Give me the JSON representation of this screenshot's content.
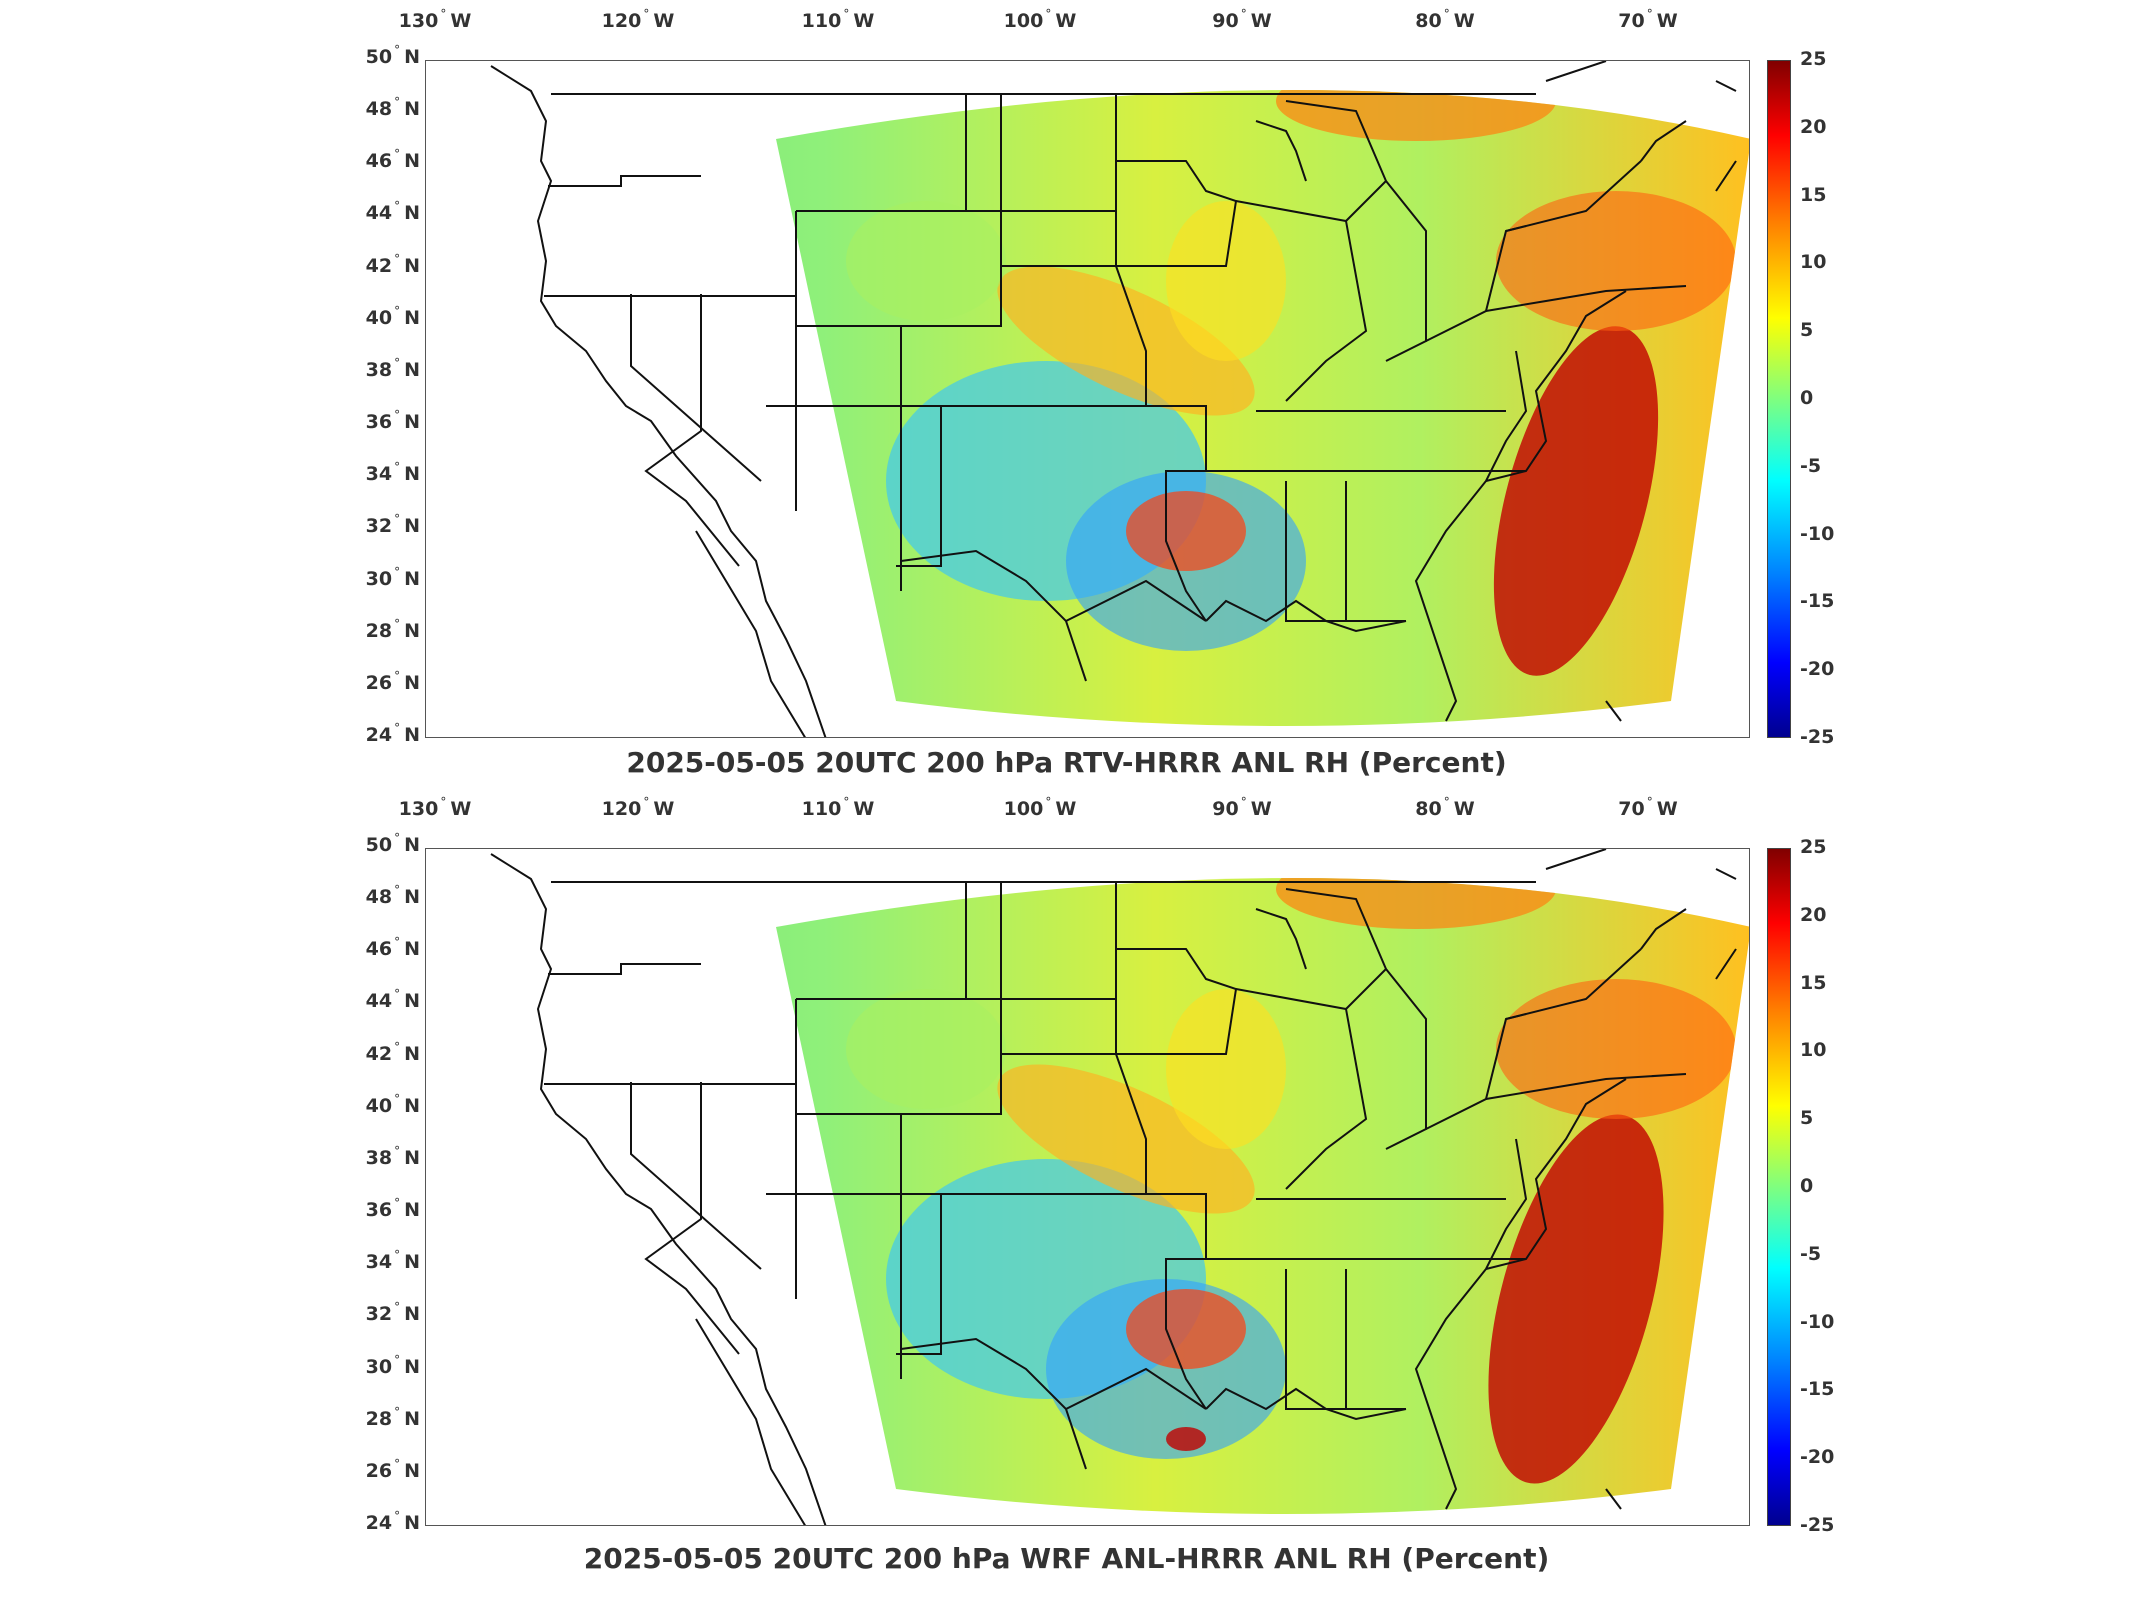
{
  "panels": [
    {
      "title": "2025-05-05 20UTC 200 hPa RTV-HRRR ANL RH (Percent)"
    },
    {
      "title": "2025-05-05 20UTC 200 hPa WRF ANL-HRRR ANL RH (Percent)"
    }
  ],
  "lon_labels": [
    "130",
    "120",
    "110",
    "100",
    "90",
    "80",
    "70"
  ],
  "lon_suffix": "W",
  "lat_labels": [
    "50",
    "48",
    "46",
    "44",
    "42",
    "40",
    "38",
    "36",
    "34",
    "32",
    "30",
    "28",
    "26",
    "24"
  ],
  "lat_suffix": "N",
  "degree_symbol": "°",
  "colorbar_ticks": [
    "25",
    "20",
    "15",
    "10",
    "5",
    "0",
    "-5",
    "-10",
    "-15",
    "-20",
    "-25"
  ],
  "colorbar": {
    "min": -25,
    "max": 25,
    "colormap": "jet"
  },
  "map_extent": {
    "lon_min": -132,
    "lon_max": -67,
    "lat_min": 24,
    "lat_max": 50
  }
}
